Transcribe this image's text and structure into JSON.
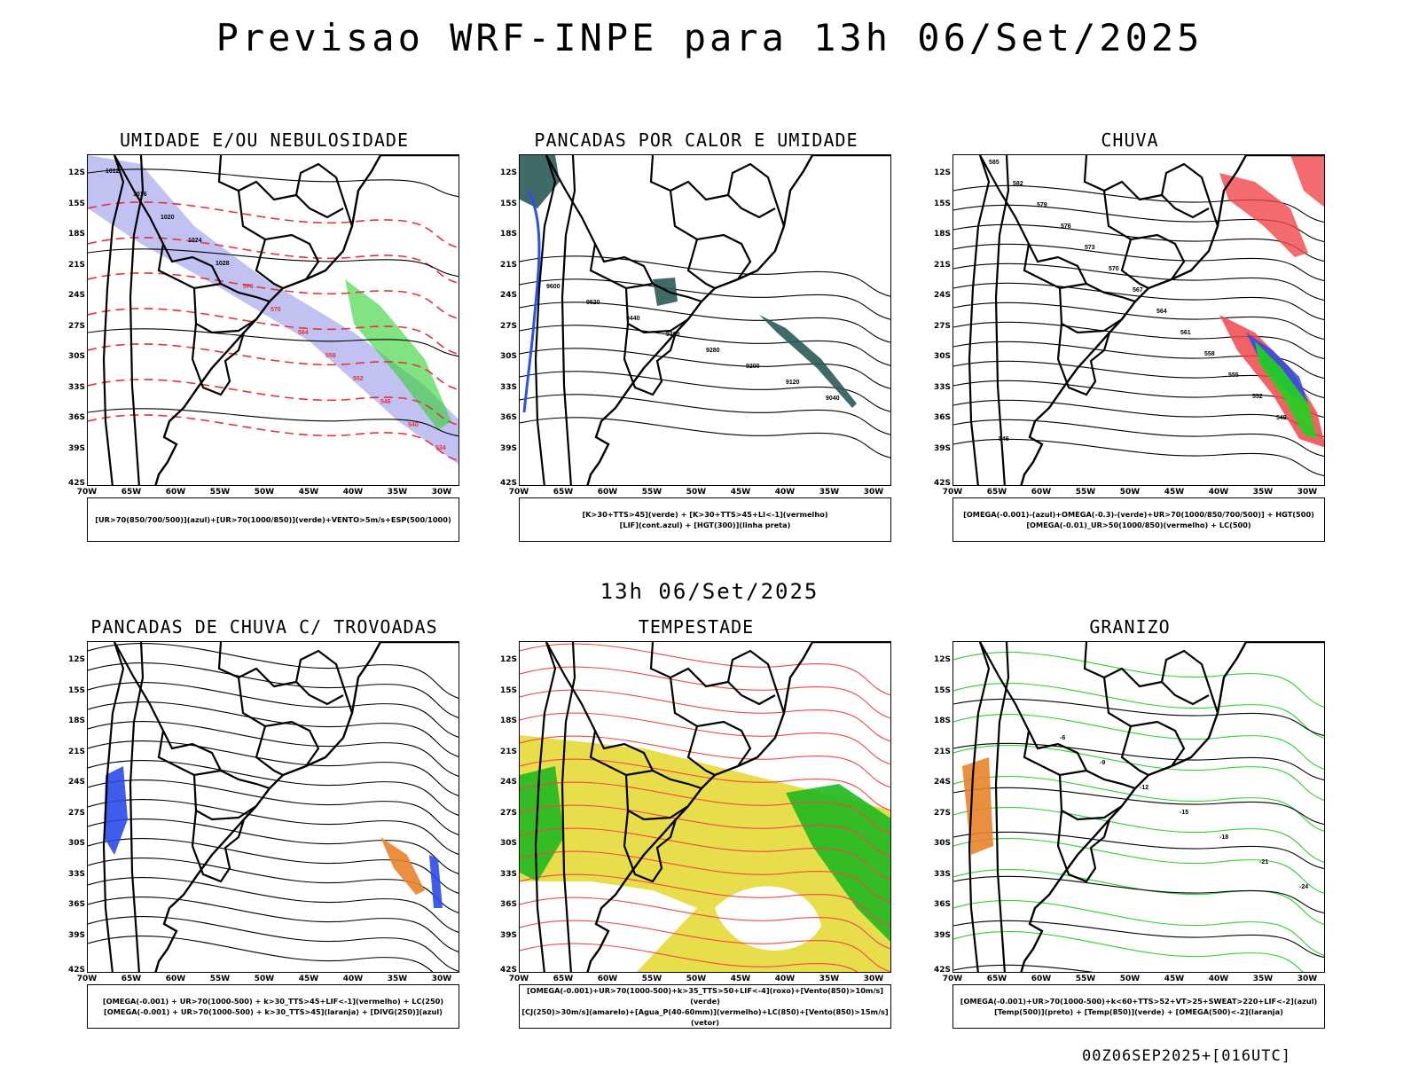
{
  "page": {
    "title": "Previsao WRF-INPE  para 13h 06/Set/2025",
    "mid_date": "13h 06/Set/2025",
    "footer": "00Z06SEP2025+[016UTC]"
  },
  "axes": {
    "lat_labels": [
      "12S",
      "15S",
      "18S",
      "21S",
      "24S",
      "27S",
      "30S",
      "33S",
      "36S",
      "39S",
      "42S"
    ],
    "lon_labels": [
      "70W",
      "65W",
      "60W",
      "55W",
      "50W",
      "45W",
      "40W",
      "35W",
      "30W"
    ]
  },
  "panels": [
    {
      "id": "umidade",
      "title": "UMIDADE E/OU NEBULOSIDADE",
      "legend": [
        "[UR>70(850/700/500)](azul)+[UR>70(1000/850)](verde)+VENTO>5m/s+ESP(500/1000)"
      ],
      "contour_labels": [
        "1012",
        "1016",
        "1020",
        "1024",
        "1028",
        "576",
        "570",
        "564",
        "558",
        "552",
        "546",
        "540",
        "534"
      ],
      "colors": {
        "humidity_high": "#8f8fe8",
        "humidity_low": "#2fd12f",
        "thickness": "#e8323c"
      }
    },
    {
      "id": "pancadas-calor",
      "title": "PANCADAS POR CALOR E UMIDADE",
      "legend": [
        "[K>30+TTS>45](verde)  +  [K>30+TTS>45+LI<-1](vermelho)",
        "[LIF](cont.azul)  +  [HGT(300)](linha preta)"
      ],
      "contour_labels": [
        "9600",
        "9520",
        "9440",
        "9360",
        "9280",
        "9200",
        "9120",
        "9040"
      ],
      "colors": {
        "instability": "#2a5a58",
        "lifted": "#2a52e8"
      }
    },
    {
      "id": "chuva",
      "title": "CHUVA",
      "legend": [
        "[OMEGA(-0.001)-(azul)+OMEGA(-0.3)-(verde)+UR>70(1000/850/700/500)]  +  HGT(500)",
        "[OMEGA(-0.01)_UR>50(1000/850)(vermelho)  +  LC(500)"
      ],
      "contour_labels": [
        "585",
        "582",
        "579",
        "576",
        "573",
        "570",
        "567",
        "564",
        "561",
        "558",
        "555",
        "552",
        "549",
        "546"
      ],
      "colors": {
        "omega_low": "#2a4ae8",
        "omega_strong": "#22d11f",
        "rain": "#f0464a"
      }
    },
    {
      "id": "trovoadas",
      "title": "PANCADAS DE CHUVA C/ TROVOADAS",
      "legend": [
        "[OMEGA(-0.001)  +  UR>70(1000-500)  +  k>30_TTS>45+LIF<-1](vermelho)  +  LC(250)",
        "[OMEGA(-0.001)  +  UR>70(1000-500)  +  k>30_TTS>45](laranja)  +  [DIVG(250)](azul)"
      ],
      "contour_labels": [],
      "colors": {
        "thunder_orange": "#e8822a",
        "divergence": "#2a4ae8"
      }
    },
    {
      "id": "tempestade",
      "title": "TEMPESTADE",
      "legend": [
        "[OMEGA(-0.001)+UR>70(1000-500)+k>35_TTS>50+LIF<-4](roxo)+[Vento(850)>10m/s](verde)",
        "[CJ(250)>30m/s](amarelo)+[Agua_P(40-60mm)](vermelho)+LC(850)+[Vento(850)>15m/s](vetor)"
      ],
      "contour_labels": [],
      "colors": {
        "jet": "#e6d937",
        "wind": "#1fb81f",
        "water": "#f04848"
      }
    },
    {
      "id": "granizo",
      "title": "GRANIZO",
      "legend": [
        "[OMEGA(-0.001)+UR>70(1000-500)+k<60+TTS>52+VT>25+SWEAT>220+LIF<-2](azul)",
        "[Temp(500)](preto)  +  [Temp(850)](verde)  +  [OMEGA(500)<-2](laranja)"
      ],
      "contour_labels": [
        "-6",
        "-9",
        "-12",
        "-15",
        "-18",
        "-21",
        "-24"
      ],
      "colors": {
        "temp850": "#2fd12f",
        "omega": "#e8822a"
      }
    }
  ]
}
